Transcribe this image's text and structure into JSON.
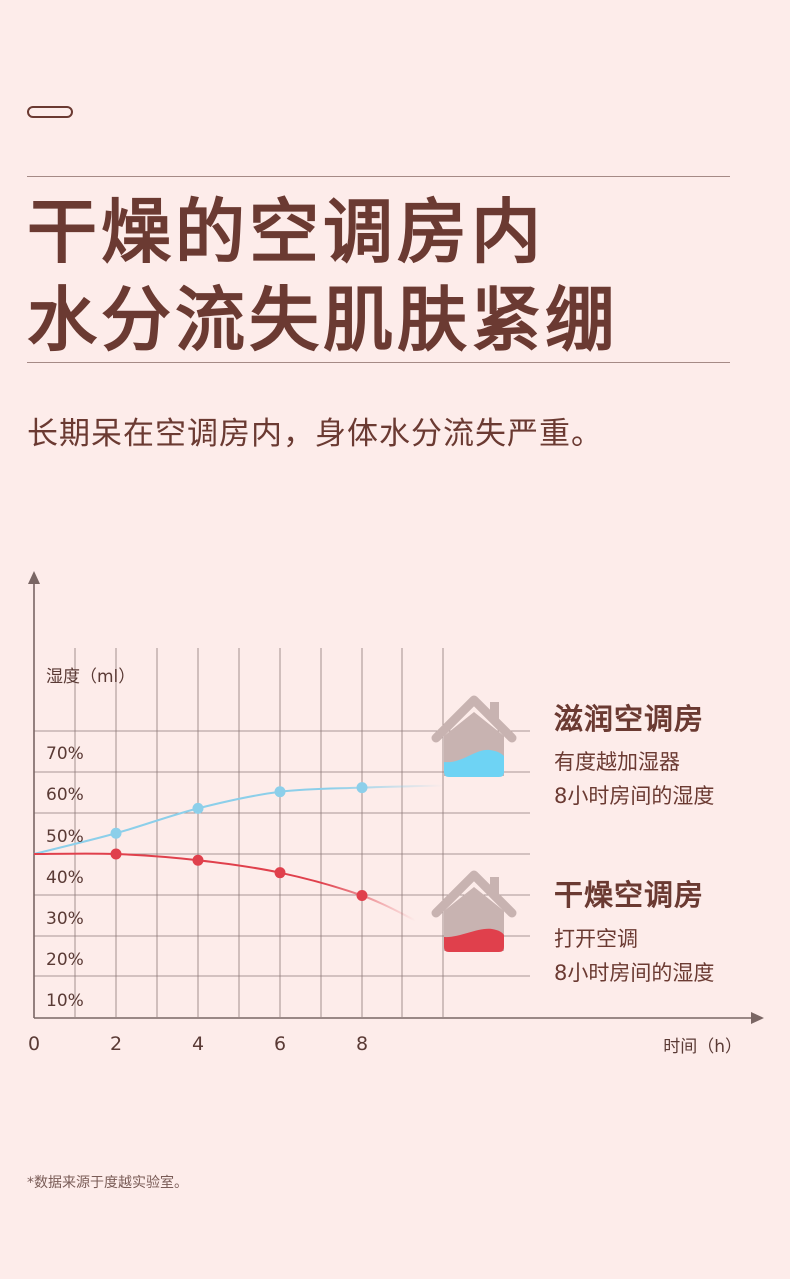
{
  "header": {
    "title_line1": "干燥的空调房内",
    "title_line2": "水分流失肌肤紧绷",
    "subtitle": "长期呆在空调房内，身体水分流失严重。"
  },
  "legend": {
    "humidified": {
      "title": "滋润空调房",
      "desc_line1": "有度越加湿器",
      "desc_line2": "8小时房间的湿度"
    },
    "dry": {
      "title": "干燥空调房",
      "desc_line1": "打开空调",
      "desc_line2": "8小时房间的湿度"
    }
  },
  "footnote": "*数据来源于度越实验室。",
  "colors": {
    "background": "#FDECEA",
    "text": "#6B3A32",
    "humidified_series": "#8CCFEA",
    "dry_series": "#E0404C",
    "house": "#C8B3B1"
  },
  "chart_data": {
    "type": "line",
    "ylabel": "湿度（ml）",
    "xlabel": "时间（h）",
    "x_ticks": [
      "0",
      "2",
      "4",
      "6",
      "8"
    ],
    "y_ticks": [
      "10%",
      "20%",
      "30%",
      "40%",
      "50%",
      "60%",
      "70%"
    ],
    "xlim": [
      0,
      12
    ],
    "ylim": [
      5,
      75
    ],
    "grid": true,
    "series": [
      {
        "name": "滋润空调房",
        "color": "#8CCFEA",
        "points": [
          [
            0,
            45
          ],
          [
            2,
            50
          ],
          [
            4,
            56
          ],
          [
            6,
            60
          ],
          [
            8,
            61
          ]
        ],
        "curve_end": [
          10,
          61.5
        ]
      },
      {
        "name": "干燥空调房",
        "color": "#E0404C",
        "points": [
          [
            0,
            45
          ],
          [
            2,
            45
          ],
          [
            4,
            43.5
          ],
          [
            6,
            40.5
          ],
          [
            8,
            35
          ]
        ],
        "curve_end": [
          9.3,
          29
        ]
      }
    ]
  }
}
